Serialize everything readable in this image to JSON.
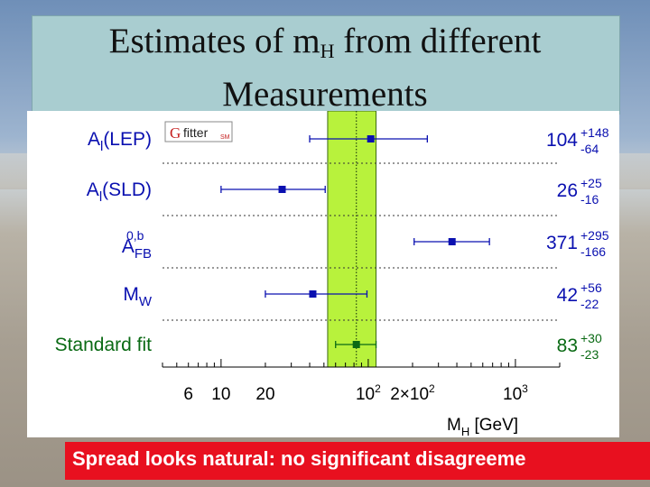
{
  "title": {
    "line1_pre": "Estimates of m",
    "line1_sub": "H",
    "line1_post": " from different",
    "line2": "Measurements"
  },
  "banner": "Spread looks natural: no significant disagreeme",
  "logo": {
    "g": "G",
    "fitter": "fitter",
    "sm": "SM"
  },
  "colors": {
    "band": "#b8f23c",
    "band_line": "#2a4a10",
    "measurement": "#0a10b0",
    "standard_fit": "#0a6a14",
    "banner": "#e8101f"
  },
  "chart_data": {
    "type": "scatter",
    "orientation": "horizontal-error-bars",
    "x_scale": "log",
    "xlim": [
      4,
      2000
    ],
    "xlabel": "M",
    "xlabel_sub": "H",
    "xlabel_unit": "[GeV]",
    "grid": false,
    "ticks": [
      {
        "value": 6,
        "label": "6"
      },
      {
        "value": 10,
        "label": "10"
      },
      {
        "value": 20,
        "label": "20"
      },
      {
        "value": 100,
        "label": "10",
        "sup": "2"
      },
      {
        "value": 200,
        "label": "2×10",
        "sup": "2"
      },
      {
        "value": 1000,
        "label": "10",
        "sup": "3"
      }
    ],
    "band": {
      "center": 83,
      "low": 53,
      "high": 113
    },
    "series": [
      {
        "label_main": "A",
        "label_sub": "l",
        "label_rest": "(LEP)",
        "label_sup": "",
        "value": 104,
        "plus": 148,
        "minus": 64,
        "value_text": "104",
        "plus_text": "+148",
        "minus_text": "-64",
        "color": "measurement"
      },
      {
        "label_main": "A",
        "label_sub": "l",
        "label_rest": "(SLD)",
        "label_sup": "",
        "value": 26,
        "plus": 25,
        "minus": 16,
        "value_text": "26",
        "plus_text": "+25",
        "minus_text": "-16",
        "color": "measurement"
      },
      {
        "label_main": "A",
        "label_sub": "FB",
        "label_rest": "",
        "label_sup": "0,b",
        "value": 371,
        "plus": 295,
        "minus": 166,
        "value_text": "371",
        "plus_text": "+295",
        "minus_text": "-166",
        "color": "measurement"
      },
      {
        "label_main": "M",
        "label_sub": "W",
        "label_rest": "",
        "label_sup": "",
        "value": 42,
        "plus": 56,
        "minus": 22,
        "value_text": "42",
        "plus_text": "+56",
        "minus_text": "-22",
        "color": "measurement"
      },
      {
        "label_main": "Standard fit",
        "label_sub": "",
        "label_rest": "",
        "label_sup": "",
        "value": 83,
        "plus": 30,
        "minus": 23,
        "value_text": "83",
        "plus_text": "+30",
        "minus_text": "-23",
        "color": "standard_fit"
      }
    ]
  }
}
